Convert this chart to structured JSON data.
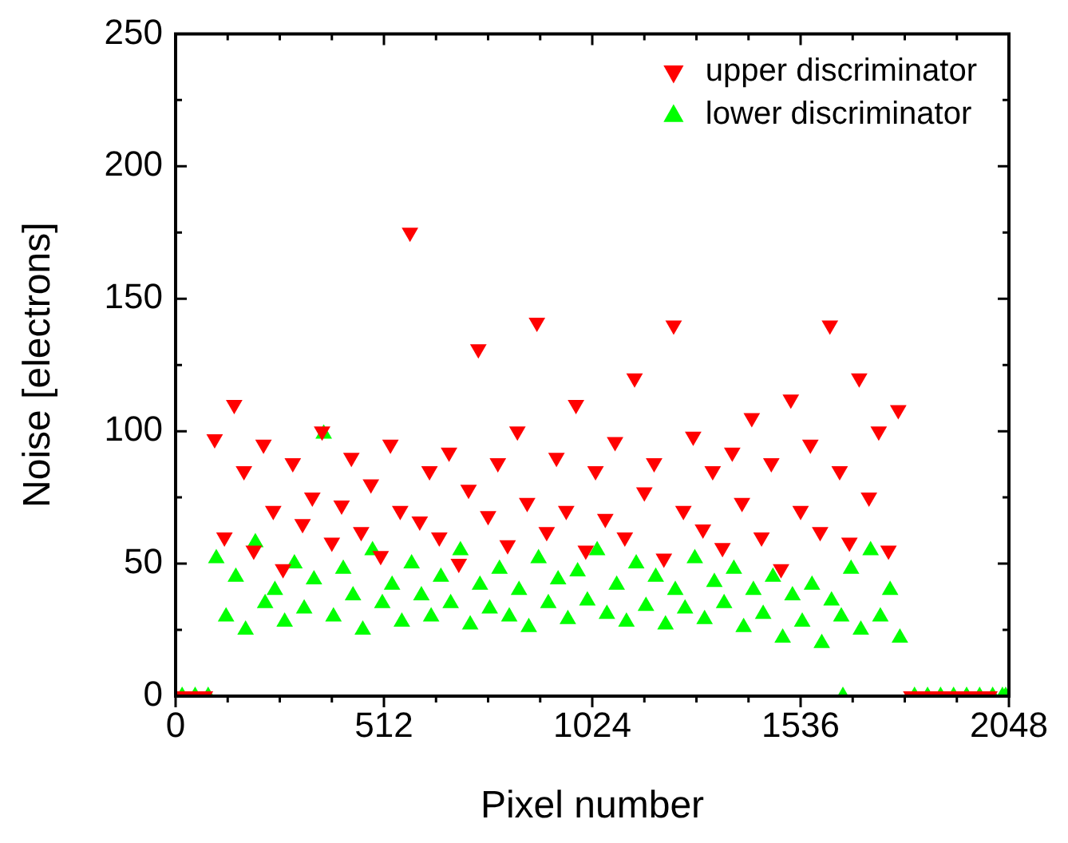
{
  "chart_data": {
    "type": "scatter",
    "xlabel": "Pixel number",
    "ylabel": "Noise [electrons]",
    "xlim": [
      0,
      2048
    ],
    "ylim": [
      0,
      250
    ],
    "xticks": [
      0,
      {
        "value": 128,
        "label": null
      },
      {
        "value": 256,
        "label": null
      },
      {
        "value": 384,
        "label": null
      },
      512,
      {
        "value": 640,
        "label": null
      },
      {
        "value": 768,
        "label": null
      },
      {
        "value": 896,
        "label": null
      },
      1024,
      {
        "value": 1152,
        "label": null
      },
      {
        "value": 1280,
        "label": null
      },
      {
        "value": 1408,
        "label": null
      },
      1536,
      {
        "value": 1664,
        "label": null
      },
      {
        "value": 1792,
        "label": null
      },
      {
        "value": 1920,
        "label": null
      },
      2048
    ],
    "yticks": [
      0,
      {
        "value": 25,
        "label": null
      },
      50,
      {
        "value": 75,
        "label": null
      },
      100,
      {
        "value": 125,
        "label": null
      },
      150,
      {
        "value": 175,
        "label": null
      },
      200,
      {
        "value": 225,
        "label": null
      },
      250
    ],
    "grid": false,
    "legend": "top right",
    "series": [
      {
        "name": "upper discriminator",
        "color": "#ff0000",
        "marker": "triangle-down",
        "x": [
          8,
          40,
          72,
          96,
          120,
          144,
          168,
          192,
          216,
          240,
          264,
          288,
          312,
          336,
          360,
          384,
          408,
          432,
          456,
          480,
          504,
          528,
          552,
          576,
          600,
          624,
          648,
          672,
          696,
          720,
          744,
          768,
          792,
          816,
          840,
          864,
          888,
          912,
          936,
          960,
          984,
          1008,
          1032,
          1056,
          1080,
          1104,
          1128,
          1152,
          1176,
          1200,
          1224,
          1248,
          1272,
          1296,
          1320,
          1344,
          1368,
          1392,
          1416,
          1440,
          1464,
          1488,
          1512,
          1536,
          1560,
          1584,
          1608,
          1632,
          1656,
          1680,
          1704,
          1728,
          1752,
          1776,
          1808,
          1840,
          1872,
          1904,
          1936,
          1968,
          2000
        ],
        "values": [
          0,
          0,
          0,
          97,
          60,
          110,
          85,
          55,
          95,
          70,
          48,
          88,
          65,
          75,
          100,
          58,
          72,
          90,
          62,
          80,
          53,
          95,
          70,
          175,
          66,
          85,
          60,
          92,
          50,
          78,
          131,
          68,
          88,
          57,
          100,
          73,
          141,
          62,
          90,
          70,
          110,
          55,
          85,
          67,
          96,
          60,
          120,
          77,
          88,
          52,
          140,
          70,
          98,
          63,
          85,
          56,
          92,
          73,
          105,
          60,
          88,
          48,
          112,
          70,
          95,
          62,
          140,
          85,
          58,
          120,
          75,
          100,
          55,
          108,
          0,
          0,
          0,
          0,
          0,
          0,
          0
        ]
      },
      {
        "name": "lower discriminator",
        "color": "#00ff00",
        "marker": "triangle",
        "x": [
          16,
          48,
          80,
          100,
          124,
          148,
          172,
          196,
          220,
          244,
          268,
          292,
          316,
          340,
          364,
          388,
          412,
          436,
          460,
          484,
          508,
          532,
          556,
          580,
          604,
          628,
          652,
          676,
          700,
          724,
          748,
          772,
          796,
          820,
          844,
          868,
          892,
          916,
          940,
          964,
          988,
          1012,
          1036,
          1060,
          1084,
          1108,
          1132,
          1156,
          1180,
          1204,
          1228,
          1252,
          1276,
          1300,
          1324,
          1348,
          1372,
          1396,
          1420,
          1444,
          1468,
          1492,
          1516,
          1540,
          1564,
          1588,
          1612,
          1636,
          1640,
          1660,
          1684,
          1708,
          1732,
          1756,
          1780,
          1816,
          1848,
          1880,
          1912,
          1944,
          1976,
          2008,
          2032,
          2040
        ],
        "values": [
          0,
          0,
          0,
          52,
          30,
          45,
          25,
          58,
          35,
          40,
          28,
          50,
          33,
          44,
          99,
          30,
          48,
          38,
          25,
          55,
          35,
          42,
          28,
          50,
          38,
          30,
          45,
          35,
          55,
          27,
          42,
          33,
          48,
          30,
          40,
          26,
          52,
          35,
          44,
          29,
          47,
          36,
          55,
          31,
          42,
          28,
          50,
          34,
          45,
          27,
          40,
          33,
          52,
          29,
          43,
          35,
          48,
          26,
          40,
          31,
          45,
          22,
          38,
          28,
          42,
          20,
          36,
          30,
          0,
          48,
          25,
          55,
          30,
          40,
          22,
          0,
          0,
          0,
          0,
          0,
          0,
          0,
          0,
          0
        ]
      }
    ]
  }
}
